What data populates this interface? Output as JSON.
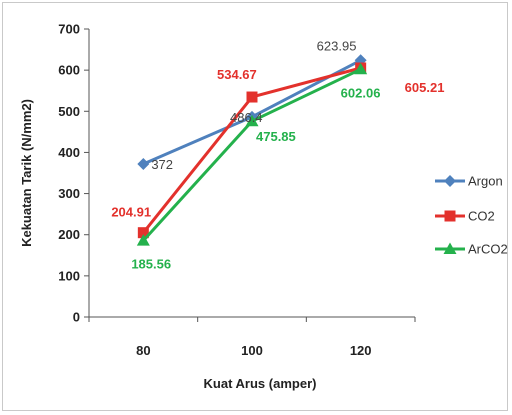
{
  "chart_data": {
    "type": "line",
    "xlabel": "Kuat Arus (amper)",
    "ylabel": "Kekuatan Tarik (N/mm2)",
    "categories": [
      "80",
      "100",
      "120"
    ],
    "ylim": [
      0,
      700
    ],
    "yticks": [
      "0",
      "100",
      "200",
      "300",
      "400",
      "500",
      "600",
      "700"
    ],
    "grid": false,
    "legend_position": "right",
    "series": [
      {
        "name": "Argon",
        "color": "#4f81bd",
        "marker": "diamond",
        "values": [
          372,
          486.4,
          623.95
        ],
        "labels": [
          "372",
          "486.4",
          "623.95"
        ]
      },
      {
        "name": "CO2",
        "color": "#e3312c",
        "marker": "square",
        "values": [
          204.91,
          534.67,
          605.21
        ],
        "labels": [
          "204.91",
          "534.67",
          "605.21"
        ]
      },
      {
        "name": "ArCO2",
        "color": "#24b14c",
        "marker": "triangle",
        "values": [
          185.56,
          475.85,
          602.06
        ],
        "labels": [
          "185.56",
          "475.85",
          "602.06"
        ]
      }
    ]
  }
}
